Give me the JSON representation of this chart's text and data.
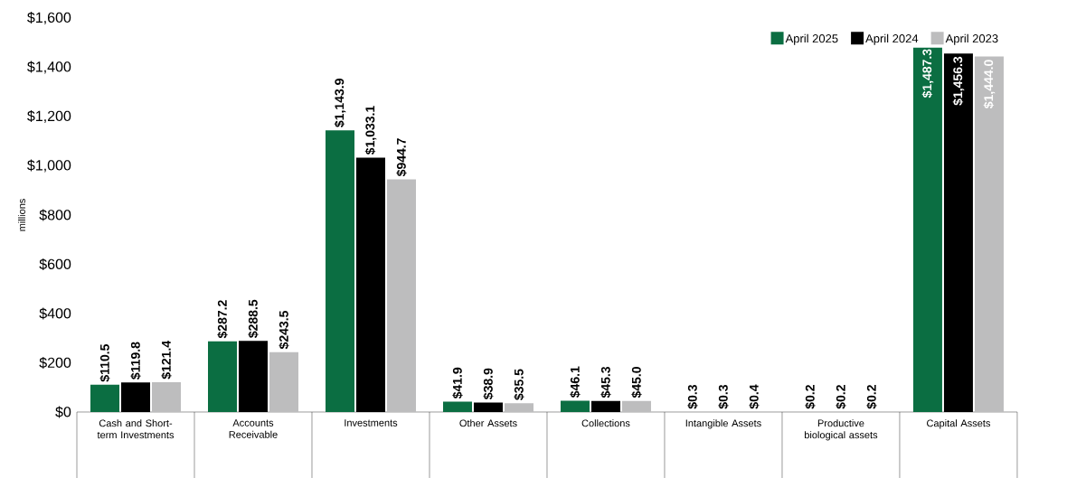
{
  "chart_data": {
    "type": "bar",
    "ylabel": "millions",
    "categories": [
      "Cash and Short-term Investments",
      "Accounts Receivable",
      "Investments",
      "Other Assets",
      "Collections",
      "Intangible Assets",
      "Productive biological assets",
      "Capital Assets"
    ],
    "series": [
      {
        "name": "April 2025",
        "color": "#0b6e42",
        "values": [
          110.5,
          287.2,
          1143.9,
          41.9,
          46.1,
          0.3,
          0.2,
          1487.3
        ],
        "value_labels": [
          "$110.5",
          "$287.2",
          "$1,143.9",
          "$41.9",
          "$46.1",
          "$0.3",
          "$0.2",
          "$1,487.3"
        ]
      },
      {
        "name": "April 2024",
        "color": "#000000",
        "values": [
          119.8,
          288.5,
          1033.1,
          38.9,
          45.3,
          0.3,
          0.2,
          1456.3
        ],
        "value_labels": [
          "$119.8",
          "$288.5",
          "$1,033.1",
          "$38.9",
          "$45.3",
          "$0.3",
          "$0.2",
          "$1,456.3"
        ]
      },
      {
        "name": "April 2023",
        "color": "#bdbdbe",
        "values": [
          121.4,
          243.5,
          944.7,
          35.5,
          45.0,
          0.4,
          0.2,
          1444.0
        ],
        "value_labels": [
          "$121.4",
          "$243.5",
          "$944.7",
          "$35.5",
          "$45.0",
          "$0.4",
          "$0.2",
          "$1,444.0"
        ]
      }
    ],
    "ylim": [
      0,
      1600
    ],
    "yticks": [
      {
        "value": 0,
        "label": "$0"
      },
      {
        "value": 200,
        "label": "$200"
      },
      {
        "value": 400,
        "label": "$400"
      },
      {
        "value": 600,
        "label": "$600"
      },
      {
        "value": 800,
        "label": "$800"
      },
      {
        "value": 1000,
        "label": "$1,000"
      },
      {
        "value": 1200,
        "label": "$1,200"
      },
      {
        "value": 1400,
        "label": "$1,400"
      },
      {
        "value": 1600,
        "label": "$1,600"
      }
    ],
    "legend": "top right"
  }
}
